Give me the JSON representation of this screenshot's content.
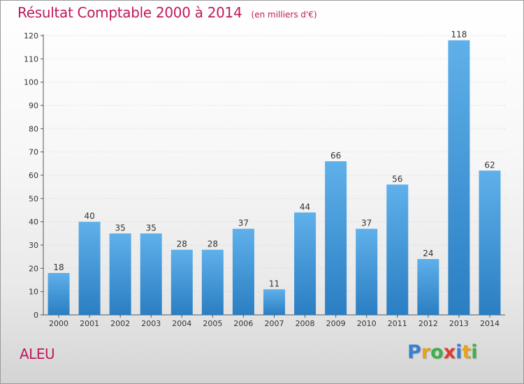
{
  "chart_data": {
    "type": "bar",
    "title": "Résultat Comptable 2000 à 2014",
    "subtitle": "(en milliers d'€)",
    "categories": [
      "2000",
      "2001",
      "2002",
      "2003",
      "2004",
      "2005",
      "2006",
      "2007",
      "2008",
      "2009",
      "2010",
      "2011",
      "2012",
      "2013",
      "2014"
    ],
    "values": [
      18,
      40,
      35,
      35,
      28,
      28,
      37,
      11,
      44,
      66,
      37,
      56,
      24,
      118,
      62
    ],
    "ylim": [
      0,
      120
    ],
    "yticks": [
      0,
      10,
      20,
      30,
      40,
      50,
      60,
      70,
      80,
      90,
      100,
      110,
      120
    ],
    "xlabel": "",
    "ylabel": "",
    "grid": true,
    "bar_color": "#3c98dc"
  },
  "location": "ALEU",
  "brand": {
    "letters": [
      "P",
      "r",
      "o",
      "x",
      "i",
      "t",
      "i"
    ]
  }
}
